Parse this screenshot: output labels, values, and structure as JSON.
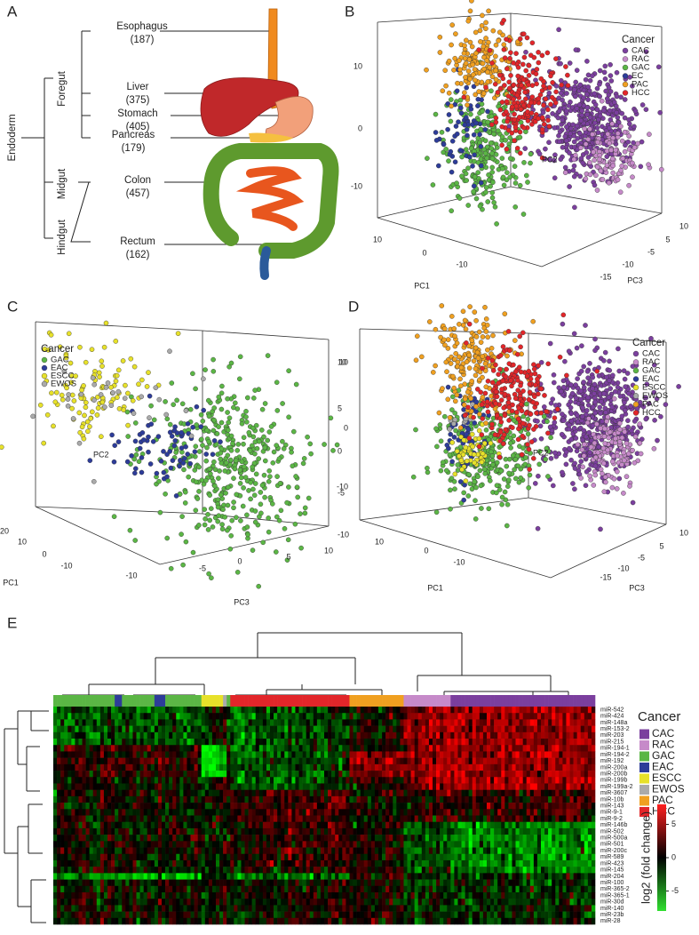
{
  "panels": {
    "A": {
      "label": "A",
      "root": "Endoderm",
      "groups": [
        "Foregut",
        "Midgut",
        "Hindgut"
      ],
      "organs": [
        {
          "name": "Esophagus",
          "count": "(187)"
        },
        {
          "name": "Liver",
          "count": "(375)"
        },
        {
          "name": "Stomach",
          "count": "(405)"
        },
        {
          "name": "Pancreas",
          "count": "(179)"
        },
        {
          "name": "Colon",
          "count": "(457)"
        },
        {
          "name": "Rectum",
          "count": "(162)"
        }
      ]
    },
    "B": {
      "label": "B",
      "legend_title": "Cancer",
      "legend": [
        {
          "name": "CAC",
          "color": "#7b3f9e"
        },
        {
          "name": "RAC",
          "color": "#c68ac9"
        },
        {
          "name": "GAC",
          "color": "#5bb645"
        },
        {
          "name": "EC",
          "color": "#2d3c99"
        },
        {
          "name": "PAC",
          "color": "#f0a020"
        },
        {
          "name": "HCC",
          "color": "#e2262a"
        }
      ],
      "axes": {
        "PC1": "PC1",
        "PC2": "PC2",
        "PC3": "PC3"
      },
      "pc2_ticks": [
        10,
        0,
        -10
      ],
      "pc1_ticks": [
        10,
        0,
        -10
      ],
      "pc3_ticks": [
        10,
        5,
        -5,
        -10,
        -15
      ]
    },
    "C": {
      "label": "C",
      "legend_title": "Cancer",
      "legend": [
        {
          "name": "GAC",
          "color": "#5bb645"
        },
        {
          "name": "EAC",
          "color": "#2d3c99"
        },
        {
          "name": "ESCC",
          "color": "#e7e12a"
        },
        {
          "name": "EWOS",
          "color": "#aaaaaa"
        }
      ],
      "axes": {
        "PC1": "PC1",
        "PC2": "PC2",
        "PC3": "PC3"
      },
      "pc2_ticks": [
        10,
        5,
        0,
        -5,
        -10
      ],
      "pc1_ticks": [
        20,
        10,
        0,
        -10
      ],
      "pc3_ticks": [
        -10,
        -5,
        0,
        5,
        10
      ]
    },
    "D": {
      "label": "D",
      "legend_title": "Cancer",
      "legend": [
        {
          "name": "CAC",
          "color": "#7b3f9e"
        },
        {
          "name": "RAC",
          "color": "#c68ac9"
        },
        {
          "name": "GAC",
          "color": "#5bb645"
        },
        {
          "name": "EAC",
          "color": "#2d3c99"
        },
        {
          "name": "ESCC",
          "color": "#e7e12a"
        },
        {
          "name": "EWOS",
          "color": "#aaaaaa"
        },
        {
          "name": "PAC",
          "color": "#f0a020"
        },
        {
          "name": "HCC",
          "color": "#e2262a"
        }
      ],
      "axes": {
        "PC1": "PC1",
        "PC2": "PC2",
        "PC3": "PC3"
      },
      "pc2_ticks": [
        10,
        0,
        -10
      ],
      "pc1_ticks": [
        10,
        0,
        -10
      ],
      "pc3_ticks": [
        10,
        5,
        -5,
        -10,
        -15
      ]
    },
    "E": {
      "label": "E",
      "legend_title": "Cancer",
      "legend": [
        {
          "name": "CAC",
          "color": "#7b3f9e"
        },
        {
          "name": "RAC",
          "color": "#c68ac9"
        },
        {
          "name": "GAC",
          "color": "#5bb645"
        },
        {
          "name": "EAC",
          "color": "#2d3c99"
        },
        {
          "name": "ESCC",
          "color": "#e7e12a"
        },
        {
          "name": "EWOS",
          "color": "#aaaaaa"
        },
        {
          "name": "PAC",
          "color": "#f0a020"
        },
        {
          "name": "HCC",
          "color": "#e2262a"
        }
      ],
      "rows": [
        "miR-542",
        "miR-424",
        "miR-148a",
        "miR-153-2",
        "miR-203",
        "miR-215",
        "miR-194-1",
        "miR-194-2",
        "miR-192",
        "miR-200a",
        "miR-200b",
        "miR-199b",
        "miR-199a-2",
        "miR-3607",
        "miR-10b",
        "miR-143",
        "miR-9-1",
        "miR-9-2",
        "miR-146b",
        "miR-502",
        "miR-500a",
        "miR-501",
        "miR-200c",
        "miR-589",
        "miR-423",
        "miR-145",
        "miR-204",
        "miR-100",
        "miR-365-2",
        "miR-365-1",
        "miR-30d",
        "miR-140",
        "miR-23b",
        "miR-28"
      ],
      "colorbar": {
        "label": "log2 (fold change)",
        "lim": [
          -8,
          8
        ],
        "ticks": [
          5,
          0,
          -5
        ]
      }
    }
  }
}
